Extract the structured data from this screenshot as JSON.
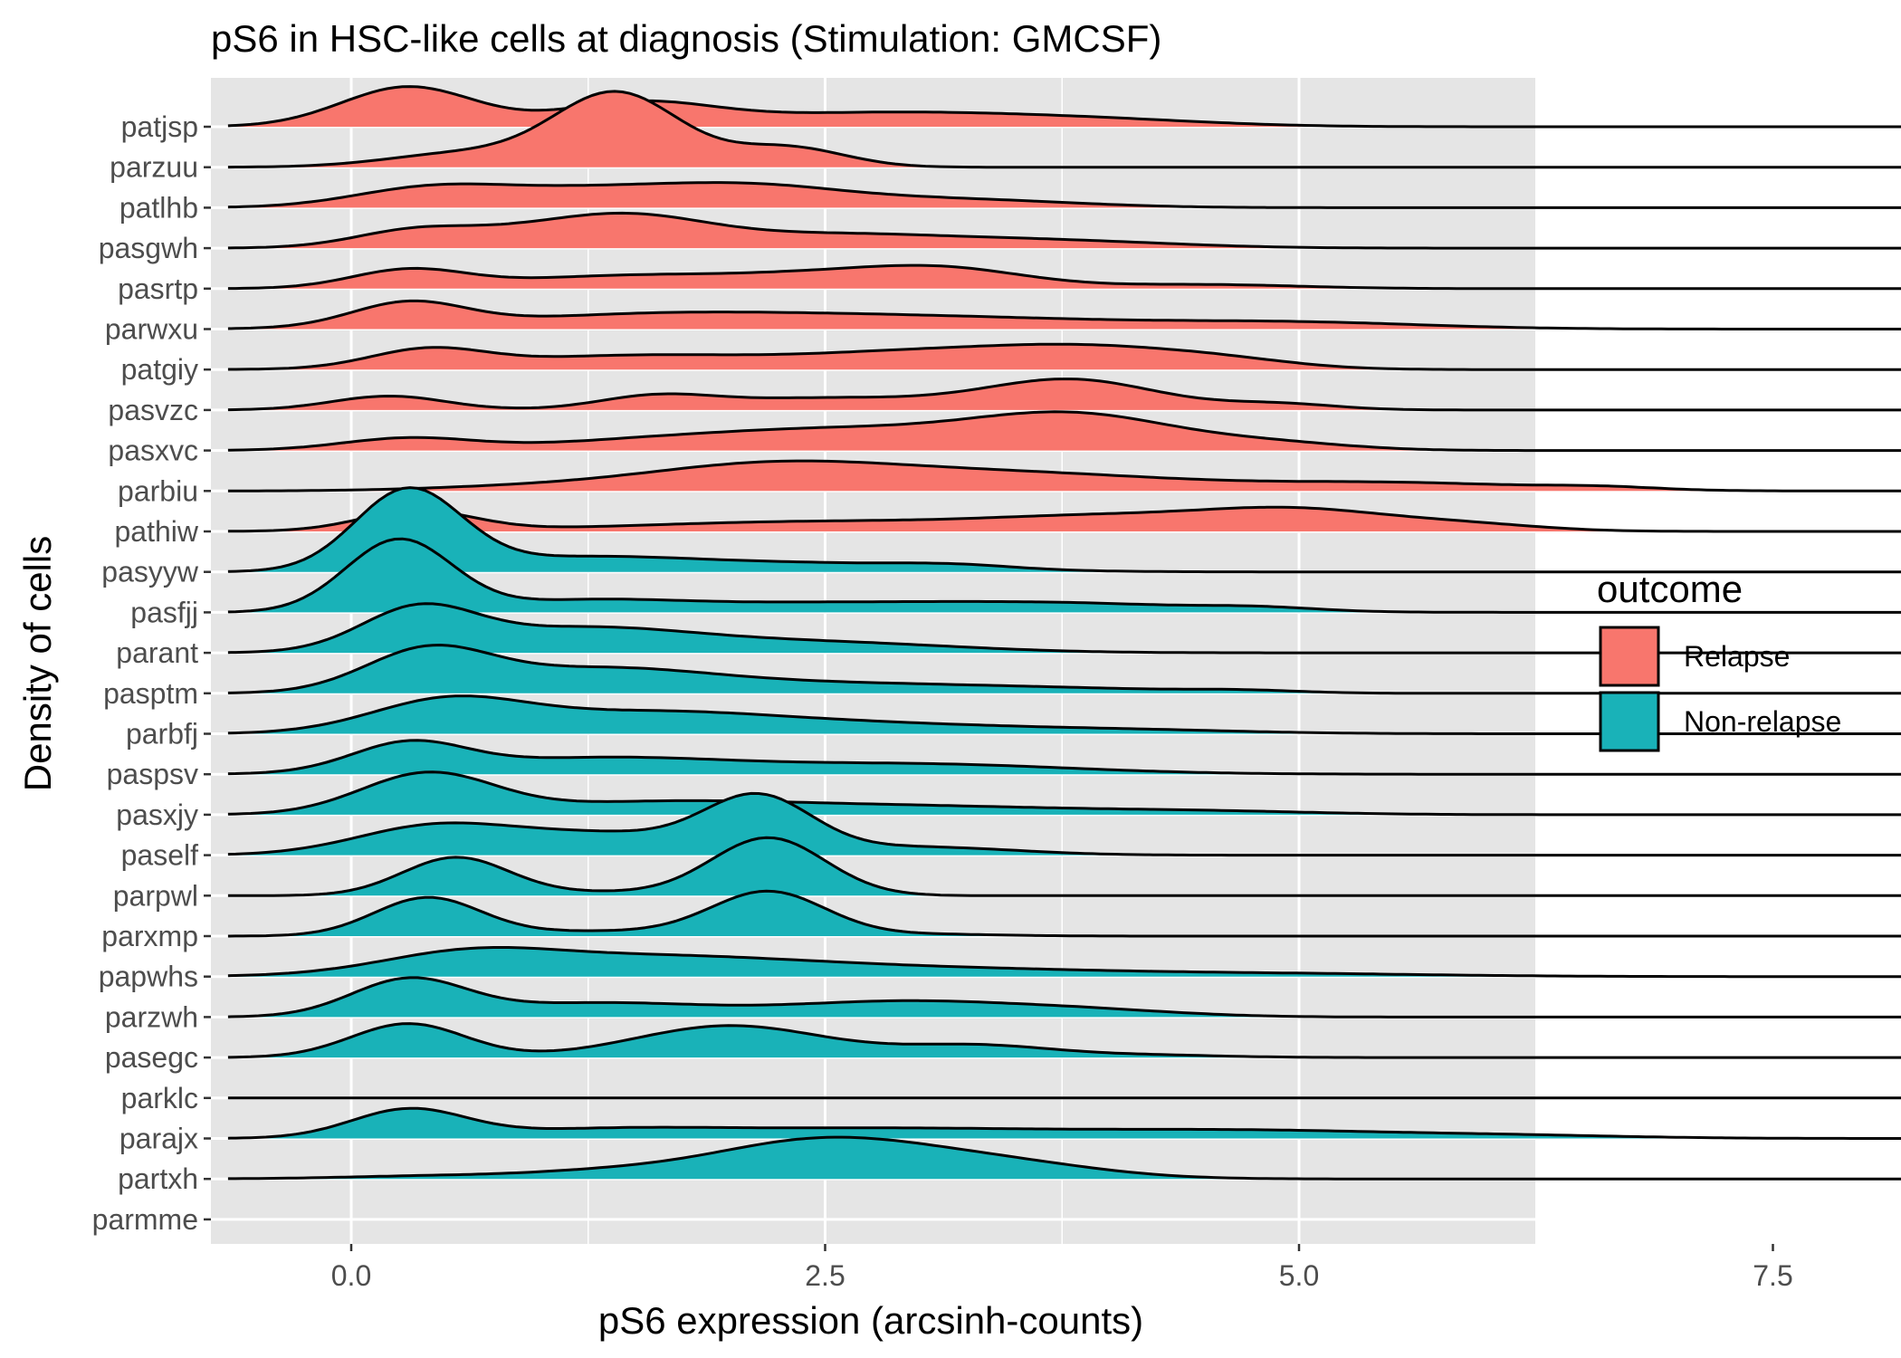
{
  "chart_data": {
    "type": "ridgeline",
    "title": "pS6 in HSC-like cells at diagnosis (Stimulation: GMCSF)",
    "xlabel": "pS6 expression (arcsinh-counts)",
    "ylabel": "Density of cells",
    "xlim": [
      -1.1,
      9.45
    ],
    "x_ticks": [
      0.0,
      2.5,
      5.0,
      7.5
    ],
    "x_tick_labels": [
      "0.0",
      "2.5",
      "5.0",
      "7.5"
    ],
    "grid": true,
    "panel_background": "#e5e5e5",
    "legend": {
      "title": "outcome",
      "position": "right",
      "entries": [
        {
          "label": "Relapse",
          "color": "#f8766d"
        },
        {
          "label": "Non-relapse",
          "color": "#19b2b8"
        }
      ]
    },
    "series": [
      {
        "name": "patjsp",
        "outcome": "Relapse",
        "peaks": [
          [
            0.3,
            0.35,
            1.0
          ],
          [
            1.5,
            0.4,
            0.55
          ],
          [
            2.8,
            0.8,
            0.35
          ],
          [
            4.0,
            0.6,
            0.12
          ]
        ]
      },
      {
        "name": "parzuu",
        "outcome": "Relapse",
        "peaks": [
          [
            0.6,
            0.4,
            0.35
          ],
          [
            1.4,
            0.33,
            1.85
          ],
          [
            2.3,
            0.3,
            0.5
          ]
        ]
      },
      {
        "name": "patlhb",
        "outcome": "Relapse",
        "peaks": [
          [
            0.4,
            0.4,
            0.45
          ],
          [
            1.2,
            0.5,
            0.4
          ],
          [
            2.1,
            0.5,
            0.5
          ],
          [
            3.2,
            0.6,
            0.2
          ]
        ]
      },
      {
        "name": "pasgwh",
        "outcome": "Relapse",
        "peaks": [
          [
            0.3,
            0.3,
            0.3
          ],
          [
            0.9,
            0.5,
            0.4
          ],
          [
            1.5,
            0.4,
            0.55
          ],
          [
            2.5,
            0.7,
            0.35
          ],
          [
            3.8,
            0.6,
            0.15
          ]
        ]
      },
      {
        "name": "pasrtp",
        "outcome": "Relapse",
        "peaks": [
          [
            0.3,
            0.3,
            0.45
          ],
          [
            1.4,
            0.6,
            0.3
          ],
          [
            2.7,
            0.6,
            0.4
          ],
          [
            3.2,
            0.4,
            0.25
          ],
          [
            4.5,
            0.5,
            0.1
          ]
        ]
      },
      {
        "name": "parwxu",
        "outcome": "Relapse",
        "peaks": [
          [
            0.3,
            0.3,
            0.6
          ],
          [
            1.5,
            0.8,
            0.3
          ],
          [
            3.0,
            1.0,
            0.3
          ],
          [
            5.0,
            0.7,
            0.15
          ]
        ]
      },
      {
        "name": "patgiy",
        "outcome": "Relapse",
        "peaks": [
          [
            0.4,
            0.3,
            0.45
          ],
          [
            1.5,
            0.7,
            0.35
          ],
          [
            3.0,
            0.6,
            0.4
          ],
          [
            3.9,
            0.5,
            0.45
          ],
          [
            4.6,
            0.4,
            0.2
          ]
        ]
      },
      {
        "name": "pasvzc",
        "outcome": "Relapse",
        "peaks": [
          [
            0.2,
            0.3,
            0.35
          ],
          [
            1.6,
            0.3,
            0.3
          ],
          [
            2.5,
            0.6,
            0.3
          ],
          [
            3.8,
            0.45,
            0.75
          ],
          [
            4.9,
            0.3,
            0.15
          ]
        ]
      },
      {
        "name": "pasxvc",
        "outcome": "Relapse",
        "peaks": [
          [
            0.3,
            0.35,
            0.3
          ],
          [
            1.6,
            0.6,
            0.25
          ],
          [
            2.6,
            0.6,
            0.45
          ],
          [
            3.8,
            0.55,
            0.9
          ],
          [
            4.9,
            0.4,
            0.15
          ]
        ]
      },
      {
        "name": "parbiu",
        "outcome": "Relapse",
        "peaks": [
          [
            0.8,
            0.5,
            0.07
          ],
          [
            2.2,
            0.7,
            0.65
          ],
          [
            3.6,
            0.8,
            0.4
          ],
          [
            5.5,
            0.7,
            0.2
          ],
          [
            6.6,
            0.3,
            0.07
          ]
        ]
      },
      {
        "name": "pathiw",
        "outcome": "Relapse",
        "peaks": [
          [
            0.35,
            0.3,
            0.5
          ],
          [
            2.5,
            1.0,
            0.25
          ],
          [
            4.0,
            0.6,
            0.3
          ],
          [
            5.0,
            0.5,
            0.5
          ],
          [
            5.9,
            0.4,
            0.15
          ]
        ]
      },
      {
        "name": "pasyyw",
        "outcome": "Non-relapse",
        "peaks": [
          [
            0.3,
            0.28,
            2.0
          ],
          [
            1.2,
            0.6,
            0.35
          ],
          [
            2.5,
            0.7,
            0.2
          ],
          [
            3.2,
            0.3,
            0.08
          ]
        ]
      },
      {
        "name": "pasfjj",
        "outcome": "Non-relapse",
        "peaks": [
          [
            0.25,
            0.28,
            1.8
          ],
          [
            1.2,
            0.5,
            0.25
          ],
          [
            2.4,
            0.8,
            0.22
          ],
          [
            3.8,
            0.7,
            0.2
          ],
          [
            4.8,
            0.3,
            0.08
          ]
        ]
      },
      {
        "name": "parant",
        "outcome": "Non-relapse",
        "peaks": [
          [
            0.35,
            0.3,
            1.0
          ],
          [
            1.2,
            0.6,
            0.6
          ],
          [
            2.5,
            0.7,
            0.25
          ]
        ]
      },
      {
        "name": "pasptm",
        "outcome": "Non-relapse",
        "peaks": [
          [
            0.4,
            0.33,
            1.0
          ],
          [
            1.3,
            0.6,
            0.6
          ],
          [
            2.6,
            0.7,
            0.22
          ],
          [
            3.8,
            0.6,
            0.1
          ],
          [
            4.7,
            0.3,
            0.06
          ]
        ]
      },
      {
        "name": "parbfj",
        "outcome": "Non-relapse",
        "peaks": [
          [
            0.5,
            0.4,
            0.75
          ],
          [
            1.5,
            0.7,
            0.5
          ],
          [
            2.8,
            0.8,
            0.22
          ],
          [
            4.2,
            0.6,
            0.07
          ]
        ]
      },
      {
        "name": "paspsv",
        "outcome": "Non-relapse",
        "peaks": [
          [
            0.3,
            0.3,
            0.7
          ],
          [
            1.3,
            0.7,
            0.4
          ],
          [
            3.0,
            0.8,
            0.25
          ]
        ]
      },
      {
        "name": "pasxjy",
        "outcome": "Non-relapse",
        "peaks": [
          [
            0.4,
            0.35,
            1.0
          ],
          [
            1.6,
            0.7,
            0.3
          ],
          [
            3.0,
            0.8,
            0.2
          ],
          [
            4.5,
            0.6,
            0.08
          ]
        ]
      },
      {
        "name": "paself",
        "outcome": "Non-relapse",
        "peaks": [
          [
            0.4,
            0.4,
            0.6
          ],
          [
            1.3,
            0.6,
            0.55
          ],
          [
            2.15,
            0.28,
            1.3
          ],
          [
            3.0,
            0.5,
            0.2
          ]
        ]
      },
      {
        "name": "parpwl",
        "outcome": "Non-relapse",
        "peaks": [
          [
            0.55,
            0.28,
            0.95
          ],
          [
            2.2,
            0.3,
            1.45
          ],
          [
            1.3,
            0.4,
            0.08
          ]
        ]
      },
      {
        "name": "parxmp",
        "outcome": "Non-relapse",
        "peaks": [
          [
            0.4,
            0.28,
            0.95
          ],
          [
            2.2,
            0.3,
            1.1
          ],
          [
            1.3,
            0.5,
            0.12
          ],
          [
            3.0,
            0.4,
            0.05
          ]
        ]
      },
      {
        "name": "papwhs",
        "outcome": "Non-relapse",
        "peaks": [
          [
            0.6,
            0.45,
            0.45
          ],
          [
            1.5,
            0.8,
            0.45
          ],
          [
            3.0,
            1.0,
            0.2
          ],
          [
            5.0,
            0.8,
            0.06
          ]
        ]
      },
      {
        "name": "parzwh",
        "outcome": "Non-relapse",
        "peaks": [
          [
            0.3,
            0.3,
            0.9
          ],
          [
            1.3,
            0.6,
            0.35
          ],
          [
            2.9,
            0.6,
            0.38
          ],
          [
            3.9,
            0.5,
            0.15
          ]
        ]
      },
      {
        "name": "pasegc",
        "outcome": "Non-relapse",
        "peaks": [
          [
            0.3,
            0.3,
            0.85
          ],
          [
            2.0,
            0.5,
            0.8
          ],
          [
            3.3,
            0.4,
            0.3
          ],
          [
            4.2,
            0.4,
            0.06
          ]
        ]
      },
      {
        "name": "parklc",
        "outcome": "Non-relapse",
        "peaks": []
      },
      {
        "name": "parajx",
        "outcome": "Non-relapse",
        "peaks": [
          [
            0.3,
            0.3,
            0.7
          ],
          [
            1.3,
            0.6,
            0.18
          ],
          [
            2.8,
            1.0,
            0.25
          ],
          [
            4.8,
            0.8,
            0.18
          ],
          [
            6.2,
            0.6,
            0.06
          ]
        ]
      },
      {
        "name": "partxh",
        "outcome": "Non-relapse",
        "peaks": [
          [
            0.5,
            0.5,
            0.08
          ],
          [
            1.3,
            0.4,
            0.12
          ],
          [
            2.5,
            0.6,
            1.0
          ],
          [
            3.5,
            0.5,
            0.3
          ]
        ]
      },
      {
        "name": "parmme",
        "outcome": "Non-relapse",
        "peaks": null
      }
    ]
  }
}
